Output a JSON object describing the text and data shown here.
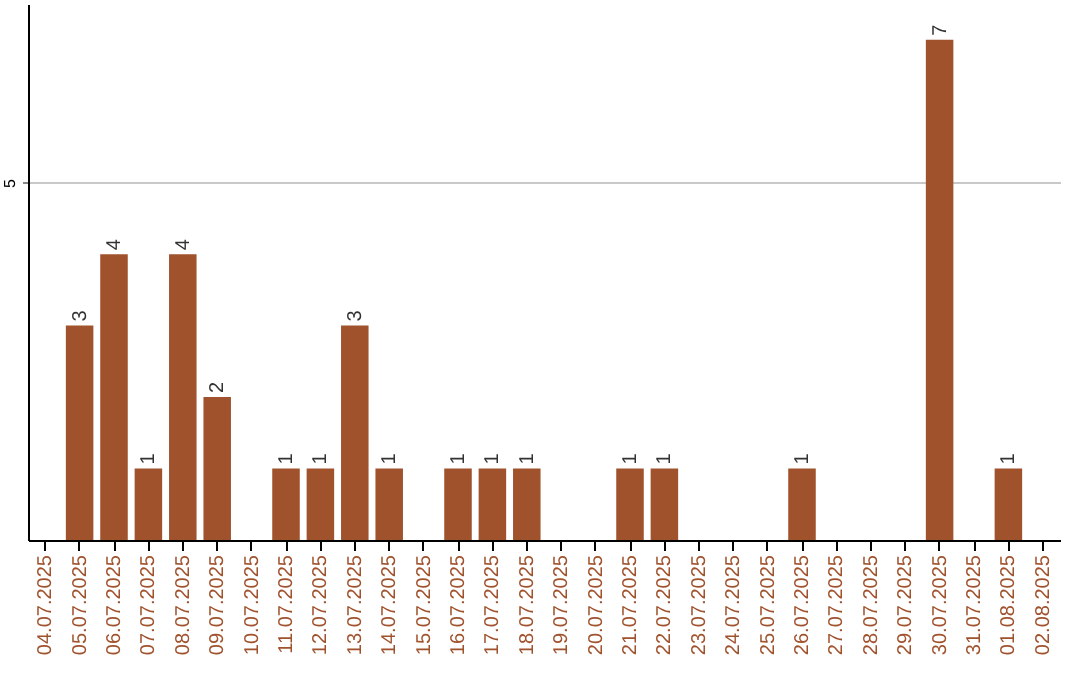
{
  "chart_data": {
    "type": "bar",
    "categories": [
      "04.07.2025",
      "05.07.2025",
      "06.07.2025",
      "07.07.2025",
      "08.07.2025",
      "09.07.2025",
      "10.07.2025",
      "11.07.2025",
      "12.07.2025",
      "13.07.2025",
      "14.07.2025",
      "15.07.2025",
      "16.07.2025",
      "17.07.2025",
      "18.07.2025",
      "19.07.2025",
      "20.07.2025",
      "21.07.2025",
      "22.07.2025",
      "23.07.2025",
      "24.07.2025",
      "25.07.2025",
      "26.07.2025",
      "27.07.2025",
      "28.07.2025",
      "29.07.2025",
      "30.07.2025",
      "31.07.2025",
      "01.08.2025",
      "02.08.2025"
    ],
    "values": [
      0,
      3,
      4,
      1,
      4,
      2,
      0,
      1,
      1,
      3,
      1,
      0,
      1,
      1,
      1,
      0,
      0,
      1,
      1,
      0,
      0,
      0,
      1,
      0,
      0,
      0,
      7,
      0,
      1,
      0
    ],
    "value_labels": [
      null,
      "3",
      "4",
      "1",
      "4",
      "2",
      null,
      "1",
      "1",
      "3",
      "1",
      null,
      "1",
      "1",
      "1",
      null,
      null,
      "1",
      "1",
      null,
      null,
      null,
      "1",
      null,
      null,
      null,
      "7",
      null,
      "1",
      null
    ],
    "color": "#a0522d",
    "ylim": [
      0,
      7.5
    ],
    "yticks": [
      5
    ],
    "grid": "y"
  }
}
